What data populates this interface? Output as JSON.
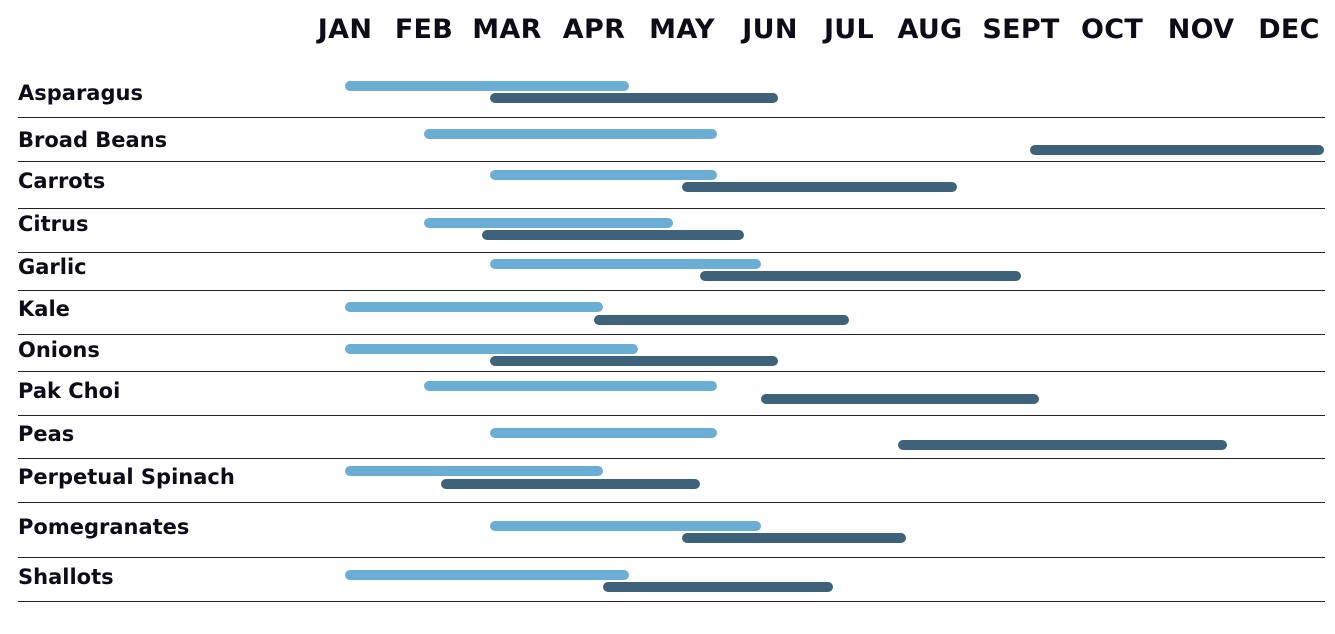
{
  "chart_data": {
    "type": "gantt",
    "title": "",
    "months": [
      "JAN",
      "FEB",
      "MAR",
      "APR",
      "MAY",
      "JUN",
      "JUL",
      "AUG",
      "SEPT",
      "OCT",
      "NOV",
      "DEC"
    ],
    "colors": {
      "light": "#6aaed6",
      "dark": "#3d6279"
    },
    "rows": [
      {
        "name": "Asparagus",
        "light": [
          1.0,
          4.4
        ],
        "dark": [
          2.8,
          6.1
        ]
      },
      {
        "name": "Broad Beans",
        "light": [
          2.0,
          5.4
        ],
        "dark": [
          9.1,
          12.4
        ]
      },
      {
        "name": "Carrots",
        "light": [
          2.8,
          5.4
        ],
        "dark": [
          5.0,
          8.3
        ]
      },
      {
        "name": "Citrus",
        "light": [
          2.0,
          4.9
        ],
        "dark": [
          2.7,
          5.7
        ]
      },
      {
        "name": "Garlic",
        "light": [
          2.8,
          5.9
        ],
        "dark": [
          5.2,
          9.0
        ]
      },
      {
        "name": "Kale",
        "light": [
          1.0,
          4.1
        ],
        "dark": [
          4.0,
          7.0
        ]
      },
      {
        "name": "Onions",
        "light": [
          1.0,
          4.5
        ],
        "dark": [
          2.8,
          6.1
        ]
      },
      {
        "name": "Pak Choi",
        "light": [
          2.0,
          5.4
        ],
        "dark": [
          5.9,
          9.2
        ]
      },
      {
        "name": "Peas",
        "light": [
          2.8,
          5.4
        ],
        "dark": [
          7.6,
          11.3
        ]
      },
      {
        "name": "Perpetual Spinach",
        "light": [
          1.0,
          4.1
        ],
        "dark": [
          2.2,
          5.2
        ]
      },
      {
        "name": "Pomegranates",
        "light": [
          2.8,
          5.9
        ],
        "dark": [
          5.0,
          7.7
        ]
      },
      {
        "name": "Shallots",
        "light": [
          1.0,
          4.4
        ],
        "dark": [
          4.1,
          6.8
        ]
      }
    ]
  }
}
